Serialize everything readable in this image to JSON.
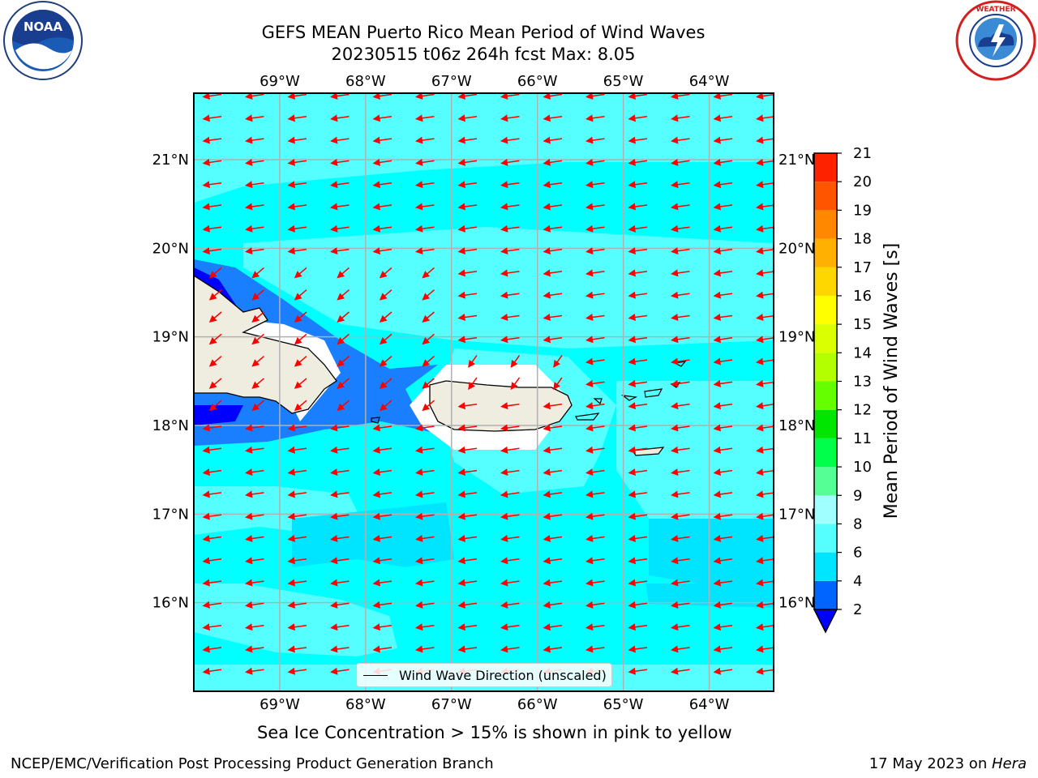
{
  "title": {
    "line1": "GEFS MEAN Puerto Rico Mean Period of Wind Waves",
    "line2": "20230515 t06z 264h fcst   Max: 8.05"
  },
  "logos": {
    "left": "noaa-logo",
    "right": "nws-logo"
  },
  "map": {
    "lon_labels": [
      "69°W",
      "68°W",
      "67°W",
      "66°W",
      "65°W",
      "64°W"
    ],
    "lat_labels": [
      "21°N",
      "20°N",
      "19°N",
      "18°N",
      "17°N",
      "16°N"
    ],
    "extent": {
      "lon": [
        -70.0,
        -63.25
      ],
      "lat": [
        15.0,
        21.75
      ]
    },
    "legend": "Wind Wave Direction (unscaled)",
    "arrow_color": "#ff0000",
    "land_color": "#efede0"
  },
  "colorbar": {
    "label": "Mean Period of Wind Waves [s]",
    "ticks": [
      "2",
      "4",
      "6",
      "8",
      "9",
      "10",
      "11",
      "12",
      "13",
      "14",
      "15",
      "16",
      "17",
      "18",
      "19",
      "20",
      "21"
    ],
    "colors": [
      "#0064ff",
      "#00e5ff",
      "#55ffff",
      "#a0ffff",
      "#55ff96",
      "#00ff4a",
      "#00e600",
      "#66ff00",
      "#b3ff00",
      "#d9ff00",
      "#ffff00",
      "#ffd700",
      "#ffb000",
      "#ff8800",
      "#ff5500",
      "#ff2200",
      "#ff0000"
    ],
    "under_color": "#0000ff"
  },
  "notes": {
    "sea_ice": "Sea Ice Concentration > 15% is shown in pink to yellow",
    "footer_left": "NCEP/EMC/Verification Post Processing Product Generation Branch",
    "footer_right_prefix": "17 May 2023 on ",
    "footer_right_host": "Hera"
  }
}
